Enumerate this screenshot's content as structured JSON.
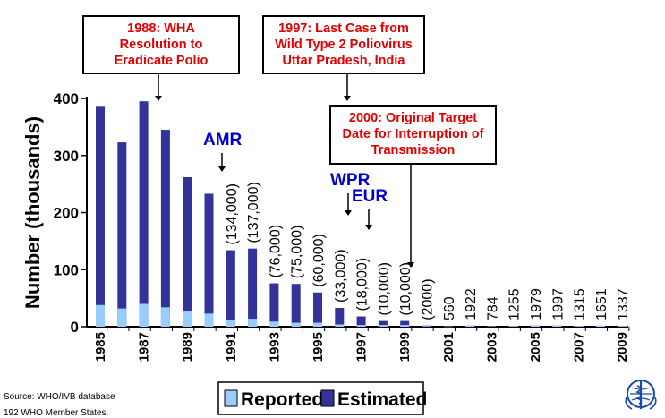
{
  "chart_data": {
    "type": "bar",
    "stacked": true,
    "ylabel": "Number (thousands)",
    "ylim": [
      0,
      400
    ],
    "yticks": [
      0,
      100,
      200,
      300,
      400
    ],
    "x_tick_labels": [
      "1985",
      "1987",
      "1989",
      "1991",
      "1993",
      "1995",
      "1997",
      "1999",
      "2001",
      "2003",
      "2005",
      "2007",
      "2009"
    ],
    "categories": [
      "1985",
      "1986",
      "1987",
      "1988",
      "1989",
      "1990",
      "1991",
      "1992",
      "1993",
      "1994",
      "1995",
      "1996",
      "1997",
      "1998",
      "1999",
      "2000",
      "2001",
      "2002",
      "2003",
      "2004",
      "2005",
      "2006",
      "2007",
      "2008",
      "2009"
    ],
    "series": [
      {
        "name": "Reported",
        "color": "#99ccff",
        "values": [
          38,
          32,
          40,
          34,
          27,
          23,
          12,
          14,
          9,
          7,
          7,
          4,
          3,
          3,
          3,
          1,
          0.5,
          1.9,
          0.8,
          1.3,
          2.0,
          2.0,
          1.3,
          1.7,
          1.3
        ]
      },
      {
        "name": "Estimated",
        "color": "#333399",
        "values": [
          387,
          323,
          395,
          345,
          262,
          233,
          134,
          137,
          76,
          75,
          60,
          33,
          18,
          10,
          10,
          2,
          0.6,
          1.9,
          0.8,
          1.3,
          2.0,
          2.0,
          1.3,
          1.7,
          1.3
        ]
      }
    ],
    "bar_labels": [
      {
        "category": "1991",
        "text": "(134,000)"
      },
      {
        "category": "1992",
        "text": "(137,000)"
      },
      {
        "category": "1993",
        "text": "(76,000)"
      },
      {
        "category": "1994",
        "text": "(75,000)"
      },
      {
        "category": "1995",
        "text": "(60,000)"
      },
      {
        "category": "1996",
        "text": "(33,000)"
      },
      {
        "category": "1997",
        "text": "(18,000)"
      },
      {
        "category": "1998",
        "text": "(10,000)"
      },
      {
        "category": "1999",
        "text": "(10,000)"
      },
      {
        "category": "2000",
        "text": "(2000)"
      },
      {
        "category": "2001",
        "text": "560"
      },
      {
        "category": "2002",
        "text": "1922"
      },
      {
        "category": "2003",
        "text": "784"
      },
      {
        "category": "2004",
        "text": "1255"
      },
      {
        "category": "2005",
        "text": "1979"
      },
      {
        "category": "2006",
        "text": "1997"
      },
      {
        "category": "2007",
        "text": "1315"
      },
      {
        "category": "2008",
        "text": "1651"
      },
      {
        "category": "2009",
        "text": "1337"
      }
    ],
    "region_labels": [
      {
        "text": "AMR",
        "category": "1991"
      },
      {
        "text": "WPR",
        "category": "1997"
      },
      {
        "text": "EUR",
        "category": "1998"
      }
    ],
    "annotations": [
      {
        "lines": [
          "1988: WHA",
          "Resolution to",
          "Eradicate Polio"
        ],
        "category": "1988"
      },
      {
        "lines": [
          "1997: Last Case from",
          "Wild Type 2 Poliovirus",
          "Uttar Pradesh, India"
        ],
        "category": "1997"
      },
      {
        "lines": [
          "2000: Original Target",
          "Date for Interruption of",
          "Transmission"
        ],
        "category": "2000"
      }
    ],
    "legend": {
      "position": "bottom"
    },
    "grid": false
  },
  "footer": {
    "source": "Source: WHO/IVB database",
    "members": "192 WHO Member States."
  },
  "logo": {
    "icon": "who-emblem-icon",
    "color": "#1a4aa8"
  }
}
